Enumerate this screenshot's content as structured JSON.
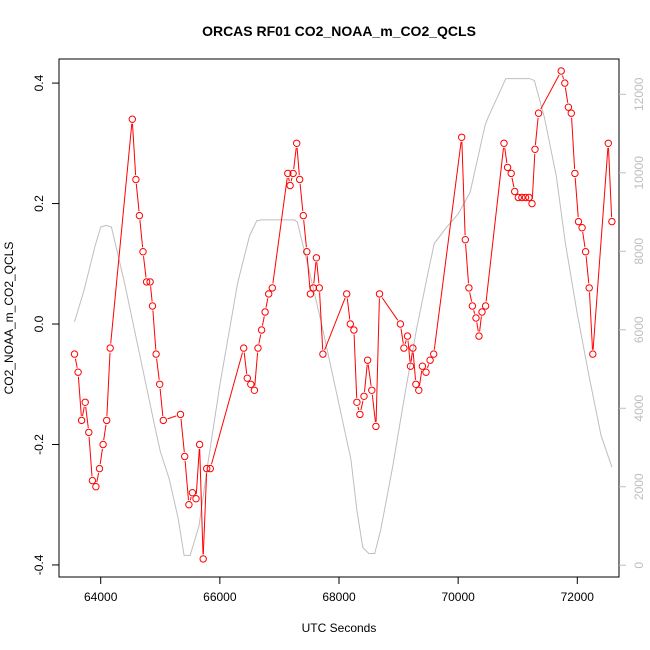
{
  "chart_data": {
    "type": "line",
    "title": "ORCAS RF01 CO2_NOAA_m_CO2_QCLS",
    "xlabel": "UTC Seconds",
    "ylabel": "CO2_NOAA_m_CO2_QCLS",
    "xlim": [
      63300,
      72700
    ],
    "ylim": [
      -0.42,
      0.44
    ],
    "y2lim": [
      -300,
      12900
    ],
    "x_ticks": [
      64000,
      66000,
      68000,
      70000,
      72000
    ],
    "x_tick_labels": [
      "64000",
      "66000",
      "68000",
      "70000",
      "72000"
    ],
    "y_ticks": [
      -0.4,
      -0.2,
      0.0,
      0.2,
      0.4
    ],
    "y_tick_labels": [
      "-0.4",
      "-0.2",
      "0.0",
      "0.2",
      "0.4"
    ],
    "y2_ticks": [
      0,
      2000,
      4000,
      6000,
      8000,
      10000,
      12000
    ],
    "y2_tick_labels": [
      "0",
      "2000",
      "4000",
      "6000",
      "8000",
      "10000",
      "12000"
    ],
    "grid": false,
    "colors": {
      "difference": "#ff0000",
      "altitude": "#bebebe",
      "axis": "#000000"
    },
    "series": [
      {
        "values_axis": "left",
        "points": [
          [
            63560,
            -0.05
          ],
          [
            63620,
            -0.08
          ],
          [
            63680,
            -0.16
          ],
          [
            63740,
            -0.13
          ],
          [
            63800,
            -0.18
          ],
          [
            63860,
            -0.26
          ],
          [
            63920,
            -0.27
          ],
          [
            63980,
            -0.24
          ],
          [
            64040,
            -0.2
          ],
          [
            64100,
            -0.16
          ],
          [
            64160,
            -0.04
          ],
          [
            64530,
            0.34
          ],
          [
            64590,
            0.24
          ],
          [
            64650,
            0.18
          ],
          [
            64710,
            0.12
          ],
          [
            64770,
            0.07
          ],
          [
            64830,
            0.07
          ],
          [
            64870,
            0.03
          ],
          [
            64930,
            -0.05
          ],
          [
            64990,
            -0.1
          ],
          [
            65050,
            -0.16
          ],
          [
            65340,
            -0.15
          ],
          [
            65410,
            -0.22
          ],
          [
            65480,
            -0.3
          ],
          [
            65540,
            -0.28
          ],
          [
            65600,
            -0.29
          ],
          [
            65660,
            -0.2
          ],
          [
            65720,
            -0.39
          ],
          [
            65780,
            -0.24
          ],
          [
            65840,
            -0.24
          ],
          [
            66400,
            -0.04
          ],
          [
            66460,
            -0.09
          ],
          [
            66520,
            -0.1
          ],
          [
            66580,
            -0.11
          ],
          [
            66640,
            -0.04
          ],
          [
            66700,
            -0.01
          ],
          [
            66760,
            0.02
          ],
          [
            66820,
            0.05
          ],
          [
            66880,
            0.06
          ],
          [
            67140,
            0.25
          ],
          [
            67180,
            0.23
          ],
          [
            67230,
            0.25
          ],
          [
            67290,
            0.3
          ],
          [
            67340,
            0.24
          ],
          [
            67400,
            0.18
          ],
          [
            67460,
            0.12
          ],
          [
            67520,
            0.05
          ],
          [
            67570,
            0.06
          ],
          [
            67620,
            0.11
          ],
          [
            67670,
            0.06
          ],
          [
            67730,
            -0.05
          ],
          [
            68130,
            0.05
          ],
          [
            68190,
            0.0
          ],
          [
            68250,
            -0.01
          ],
          [
            68300,
            -0.13
          ],
          [
            68350,
            -0.15
          ],
          [
            68420,
            -0.12
          ],
          [
            68480,
            -0.06
          ],
          [
            68550,
            -0.11
          ],
          [
            68620,
            -0.17
          ],
          [
            68680,
            0.05
          ],
          [
            69030,
            0.0
          ],
          [
            69090,
            -0.04
          ],
          [
            69150,
            -0.02
          ],
          [
            69200,
            -0.07
          ],
          [
            69240,
            -0.04
          ],
          [
            69290,
            -0.1
          ],
          [
            69340,
            -0.11
          ],
          [
            69400,
            -0.07
          ],
          [
            69460,
            -0.08
          ],
          [
            69530,
            -0.06
          ],
          [
            69590,
            -0.05
          ],
          [
            70060,
            0.31
          ],
          [
            70120,
            0.14
          ],
          [
            70180,
            0.06
          ],
          [
            70240,
            0.03
          ],
          [
            70300,
            0.01
          ],
          [
            70350,
            -0.02
          ],
          [
            70400,
            0.02
          ],
          [
            70460,
            0.03
          ],
          [
            70770,
            0.3
          ],
          [
            70830,
            0.26
          ],
          [
            70890,
            0.25
          ],
          [
            70950,
            0.22
          ],
          [
            71010,
            0.21
          ],
          [
            71070,
            0.21
          ],
          [
            71130,
            0.21
          ],
          [
            71190,
            0.21
          ],
          [
            71240,
            0.2
          ],
          [
            71290,
            0.29
          ],
          [
            71350,
            0.35
          ],
          [
            71730,
            0.42
          ],
          [
            71790,
            0.4
          ],
          [
            71850,
            0.36
          ],
          [
            71900,
            0.35
          ],
          [
            71960,
            0.25
          ],
          [
            72020,
            0.17
          ],
          [
            72080,
            0.16
          ],
          [
            72140,
            0.12
          ],
          [
            72200,
            0.06
          ],
          [
            72260,
            -0.05
          ],
          [
            72520,
            0.3
          ],
          [
            72580,
            0.17
          ]
        ]
      },
      {
        "values_axis": "right",
        "points": [
          [
            63560,
            6200
          ],
          [
            63720,
            7000
          ],
          [
            63900,
            8100
          ],
          [
            64000,
            8620
          ],
          [
            64090,
            8660
          ],
          [
            64180,
            8620
          ],
          [
            64400,
            7200
          ],
          [
            64650,
            5400
          ],
          [
            64900,
            3600
          ],
          [
            65000,
            2900
          ],
          [
            65150,
            2200
          ],
          [
            65300,
            1200
          ],
          [
            65400,
            250
          ],
          [
            65500,
            250
          ],
          [
            65650,
            1000
          ],
          [
            65800,
            2600
          ],
          [
            66000,
            4600
          ],
          [
            66300,
            7200
          ],
          [
            66500,
            8400
          ],
          [
            66620,
            8780
          ],
          [
            66700,
            8800
          ],
          [
            67000,
            8800
          ],
          [
            67250,
            8800
          ],
          [
            67300,
            8750
          ],
          [
            67500,
            7500
          ],
          [
            67700,
            6200
          ],
          [
            68000,
            4100
          ],
          [
            68200,
            2700
          ],
          [
            68300,
            1400
          ],
          [
            68400,
            450
          ],
          [
            68500,
            300
          ],
          [
            68600,
            300
          ],
          [
            68700,
            900
          ],
          [
            68900,
            2500
          ],
          [
            69100,
            4300
          ],
          [
            69300,
            6000
          ],
          [
            69500,
            7500
          ],
          [
            69600,
            8200
          ],
          [
            69800,
            8600
          ],
          [
            70000,
            8950
          ],
          [
            70200,
            9500
          ],
          [
            70450,
            11200
          ],
          [
            70500,
            11400
          ],
          [
            70650,
            11900
          ],
          [
            70800,
            12400
          ],
          [
            71000,
            12400
          ],
          [
            71200,
            12400
          ],
          [
            71280,
            12350
          ],
          [
            71450,
            11400
          ],
          [
            71650,
            9900
          ],
          [
            71800,
            8200
          ],
          [
            72000,
            6400
          ],
          [
            72200,
            4800
          ],
          [
            72400,
            3300
          ],
          [
            72580,
            2500
          ]
        ]
      }
    ]
  }
}
